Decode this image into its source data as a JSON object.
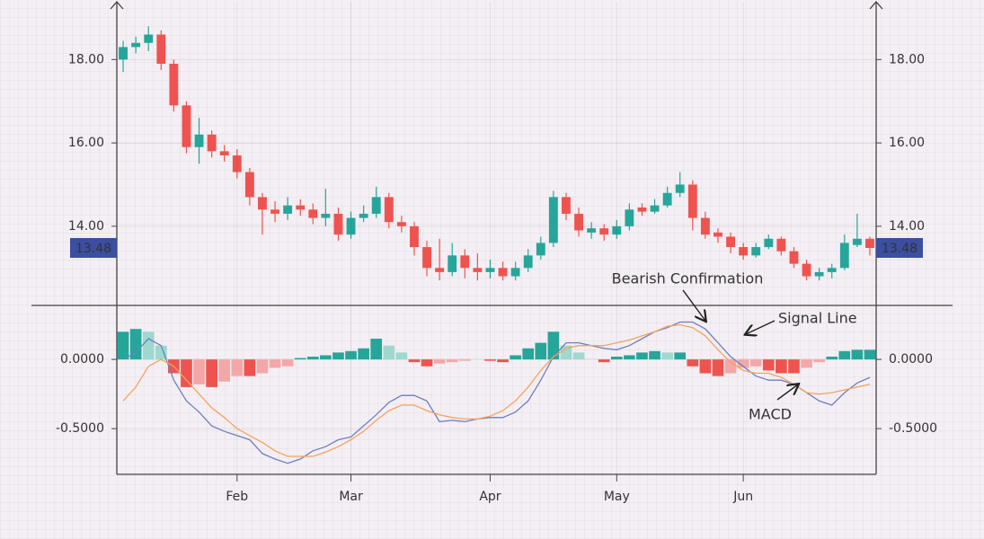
{
  "chart_data": [
    {
      "type": "candlestick",
      "open": [
        18.0,
        18.3,
        18.4,
        18.6,
        17.9,
        16.9,
        15.9,
        16.2,
        15.8,
        15.7,
        15.3,
        14.7,
        14.4,
        14.3,
        14.5,
        14.4,
        14.2,
        14.3,
        13.8,
        14.2,
        14.3,
        14.7,
        14.1,
        14.0,
        13.5,
        13.0,
        12.9,
        13.3,
        13.0,
        12.9,
        13.0,
        12.8,
        13.0,
        13.3,
        13.6,
        14.7,
        14.3,
        13.85,
        13.95,
        13.8,
        14.0,
        14.45,
        14.35,
        14.5,
        14.8,
        15.0,
        14.2,
        13.85,
        13.75,
        13.5,
        13.3,
        13.5,
        13.7,
        13.4,
        13.1,
        12.8,
        12.9,
        13.0,
        13.55,
        13.7
      ],
      "high": [
        18.45,
        18.55,
        18.8,
        18.7,
        18.0,
        17.0,
        16.6,
        16.3,
        15.95,
        15.85,
        15.4,
        14.8,
        14.6,
        14.7,
        14.65,
        14.55,
        14.9,
        14.45,
        14.35,
        14.5,
        14.95,
        14.8,
        14.25,
        14.1,
        13.65,
        13.7,
        13.6,
        13.45,
        13.35,
        13.2,
        13.15,
        13.15,
        13.45,
        13.75,
        14.85,
        14.8,
        14.45,
        14.1,
        14.05,
        14.15,
        14.55,
        14.55,
        14.65,
        14.95,
        15.3,
        15.1,
        14.35,
        13.95,
        13.85,
        13.6,
        13.6,
        13.8,
        13.75,
        13.5,
        13.2,
        13.0,
        13.1,
        13.8,
        14.3,
        13.75
      ],
      "low": [
        17.7,
        18.15,
        18.2,
        17.75,
        16.75,
        15.75,
        15.5,
        15.65,
        15.55,
        15.15,
        14.5,
        13.8,
        14.1,
        14.15,
        14.25,
        14.05,
        14.0,
        13.65,
        13.7,
        14.1,
        14.2,
        13.95,
        13.85,
        13.3,
        12.8,
        12.7,
        12.8,
        12.75,
        12.7,
        12.75,
        12.7,
        12.7,
        12.9,
        13.2,
        13.5,
        14.15,
        13.75,
        13.7,
        13.65,
        13.7,
        13.9,
        14.25,
        14.3,
        14.45,
        14.7,
        13.9,
        13.7,
        13.6,
        13.35,
        13.2,
        13.25,
        13.45,
        13.3,
        13.0,
        12.7,
        12.7,
        12.75,
        12.95,
        13.5,
        13.3
      ],
      "close": [
        18.3,
        18.4,
        18.6,
        17.9,
        16.9,
        15.9,
        16.2,
        15.8,
        15.7,
        15.3,
        14.7,
        14.4,
        14.3,
        14.5,
        14.4,
        14.2,
        14.3,
        13.8,
        14.2,
        14.3,
        14.7,
        14.1,
        14.0,
        13.5,
        13.0,
        12.9,
        13.3,
        13.0,
        12.9,
        13.0,
        12.8,
        13.0,
        13.3,
        13.6,
        14.7,
        14.3,
        13.9,
        13.95,
        13.8,
        14.0,
        14.4,
        14.35,
        14.5,
        14.8,
        15.0,
        14.2,
        13.8,
        13.75,
        13.5,
        13.3,
        13.5,
        13.7,
        13.4,
        13.1,
        12.8,
        12.9,
        13.0,
        13.6,
        13.7,
        13.48
      ],
      "up_color": "#26a69a",
      "down_color": "#ef5350",
      "last_price": {
        "value": 13.48,
        "label": "13.48"
      },
      "last_price_color": "#3b4fa0",
      "ylim": [
        12.1,
        19.3
      ],
      "yticks": [
        {
          "value": 14,
          "label": "14.00"
        },
        {
          "value": 16,
          "label": "16.00"
        },
        {
          "value": 18,
          "label": "18.00"
        }
      ]
    },
    {
      "type": "macd",
      "categories": [
        null,
        null,
        null,
        null,
        null,
        null,
        null,
        null,
        null,
        "Feb",
        null,
        null,
        null,
        null,
        null,
        null,
        null,
        null,
        "Mar",
        null,
        null,
        null,
        null,
        null,
        null,
        null,
        null,
        null,
        null,
        "Apr",
        null,
        null,
        null,
        null,
        null,
        null,
        null,
        null,
        null,
        "May",
        null,
        null,
        null,
        null,
        null,
        null,
        null,
        null,
        null,
        "Jun",
        null,
        null,
        null,
        null,
        null,
        null,
        null,
        null,
        null,
        null
      ],
      "histogram": [
        0.2,
        0.22,
        0.2,
        0.1,
        -0.1,
        -0.2,
        -0.18,
        -0.2,
        -0.16,
        -0.12,
        -0.12,
        -0.1,
        -0.06,
        -0.05,
        0.01,
        0.02,
        0.03,
        0.05,
        0.06,
        0.08,
        0.15,
        0.1,
        0.05,
        -0.02,
        -0.05,
        -0.03,
        -0.02,
        -0.01,
        0.0,
        -0.01,
        -0.02,
        0.03,
        0.08,
        0.12,
        0.2,
        0.1,
        0.05,
        0.0,
        -0.02,
        0.02,
        0.03,
        0.05,
        0.06,
        0.05,
        0.05,
        -0.05,
        -0.1,
        -0.12,
        -0.1,
        -0.06,
        -0.05,
        -0.08,
        -0.1,
        -0.1,
        -0.06,
        -0.02,
        0.02,
        0.06,
        0.07,
        0.07
      ],
      "histogram_colors": [
        "#26a69a",
        "#9fd8cf",
        "#ef5350",
        "#f4a7a7"
      ],
      "series": [
        {
          "name": "MACD",
          "color": "#6f7fc0",
          "values": [
            0.0,
            0.05,
            0.15,
            0.1,
            -0.15,
            -0.3,
            -0.38,
            -0.48,
            -0.52,
            -0.55,
            -0.58,
            -0.68,
            -0.72,
            -0.75,
            -0.72,
            -0.66,
            -0.63,
            -0.58,
            -0.56,
            -0.48,
            -0.4,
            -0.31,
            -0.26,
            -0.26,
            -0.3,
            -0.45,
            -0.44,
            -0.45,
            -0.43,
            -0.42,
            -0.42,
            -0.38,
            -0.3,
            -0.15,
            0.02,
            0.12,
            0.12,
            0.1,
            0.08,
            0.07,
            0.1,
            0.15,
            0.2,
            0.23,
            0.27,
            0.27,
            0.22,
            0.12,
            0.02,
            -0.05,
            -0.12,
            -0.15,
            -0.15,
            -0.18,
            -0.24,
            -0.3,
            -0.33,
            -0.24,
            -0.17,
            -0.13
          ]
        },
        {
          "name": "Signal Line",
          "color": "#f5a35c",
          "values": [
            -0.3,
            -0.2,
            -0.05,
            0.0,
            -0.05,
            -0.15,
            -0.25,
            -0.35,
            -0.42,
            -0.5,
            -0.55,
            -0.6,
            -0.66,
            -0.7,
            -0.7,
            -0.7,
            -0.67,
            -0.63,
            -0.58,
            -0.52,
            -0.44,
            -0.37,
            -0.33,
            -0.33,
            -0.37,
            -0.4,
            -0.42,
            -0.43,
            -0.43,
            -0.41,
            -0.37,
            -0.3,
            -0.2,
            -0.08,
            0.02,
            0.08,
            0.1,
            0.1,
            0.1,
            0.12,
            0.14,
            0.17,
            0.2,
            0.24,
            0.25,
            0.23,
            0.17,
            0.07,
            -0.02,
            -0.08,
            -0.1,
            -0.1,
            -0.13,
            -0.18,
            -0.24,
            -0.25,
            -0.24,
            -0.22,
            -0.2,
            -0.18
          ]
        }
      ],
      "annotation": "Bearish Confirmation",
      "ylim": [
        -0.83,
        0.39
      ],
      "yticks": [
        {
          "value": -0.5,
          "label": "-0.5000"
        },
        {
          "value": 0,
          "label": "0.0000"
        }
      ]
    }
  ]
}
